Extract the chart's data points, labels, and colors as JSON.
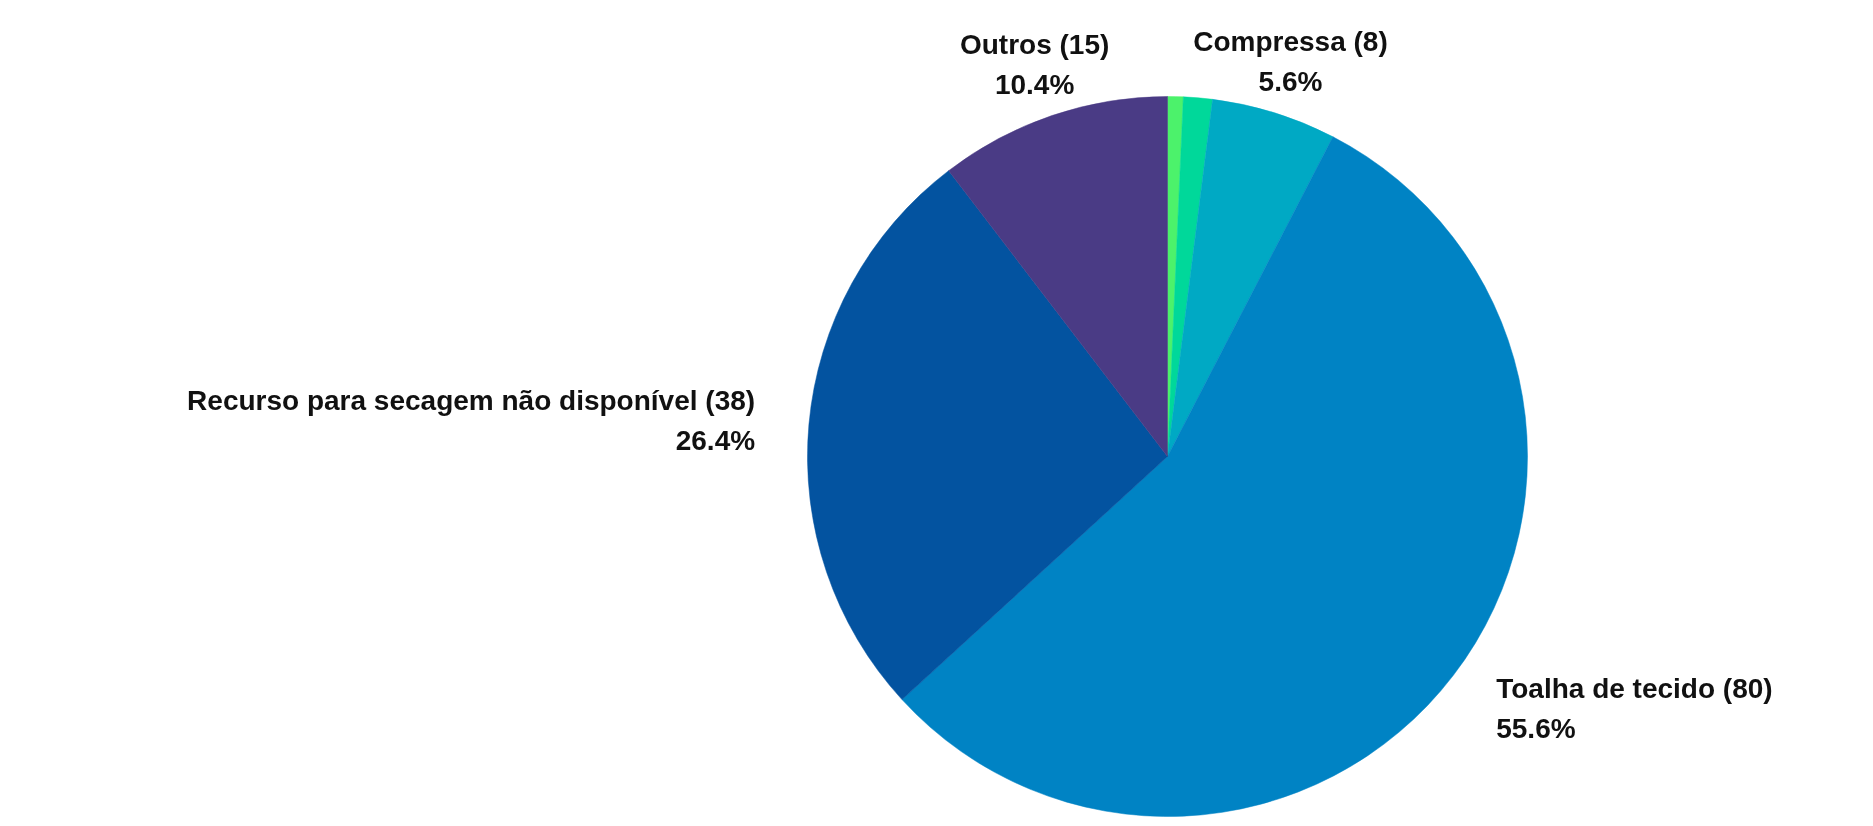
{
  "chart_data": {
    "type": "pie",
    "categories": [
      null,
      null,
      "Compressa (8)",
      "Toalha de tecido (80)",
      "Recurso para secagem não disponível (38)",
      "Outros (15)"
    ],
    "values": [
      0.7,
      1.3,
      5.6,
      55.6,
      26.4,
      10.4
    ],
    "value_labels": [
      null,
      null,
      "5.6%",
      "55.6%",
      "26.4%",
      "10.4%"
    ],
    "colors": [
      "#4cf26b",
      "#00d89a",
      "#00a9c4",
      "#0083c4",
      "#0353a0",
      "#4a3b85"
    ]
  }
}
